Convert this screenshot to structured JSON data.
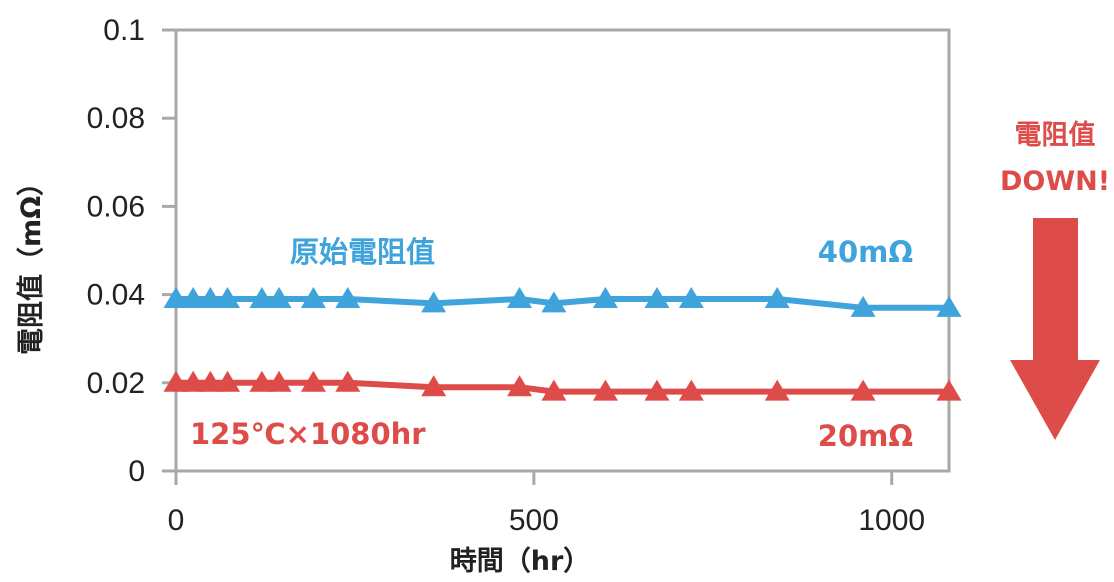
{
  "chart_data": {
    "type": "line",
    "xlabel": "時間（hr）",
    "ylabel": "電阻值（mΩ）",
    "xlim": [
      0,
      1080
    ],
    "ylim": [
      0,
      0.1
    ],
    "x_ticks": [
      "0",
      "500",
      "1000"
    ],
    "x_tick_values": [
      0,
      500,
      1000
    ],
    "y_ticks": [
      "0",
      "0.02",
      "0.04",
      "0.06",
      "0.08",
      "0.1"
    ],
    "y_tick_values": [
      0,
      0.02,
      0.04,
      0.06,
      0.08,
      0.1
    ],
    "grid": false,
    "marker": "triangle",
    "series": [
      {
        "color": "#3fa3dc",
        "x": [
          0,
          24,
          48,
          72,
          120,
          144,
          192,
          240,
          360,
          480,
          528,
          600,
          672,
          720,
          840,
          960,
          1080
        ],
        "values": [
          0.039,
          0.039,
          0.039,
          0.039,
          0.039,
          0.039,
          0.039,
          0.039,
          0.038,
          0.039,
          0.038,
          0.039,
          0.039,
          0.039,
          0.039,
          0.037,
          0.037
        ]
      },
      {
        "color": "#de4c4a",
        "x": [
          0,
          24,
          48,
          72,
          120,
          144,
          192,
          240,
          360,
          480,
          528,
          600,
          672,
          720,
          840,
          960,
          1080
        ],
        "values": [
          0.02,
          0.02,
          0.02,
          0.02,
          0.02,
          0.02,
          0.02,
          0.02,
          0.019,
          0.019,
          0.018,
          0.018,
          0.018,
          0.018,
          0.018,
          0.018,
          0.018
        ]
      }
    ],
    "annotations": {
      "blue_name": "原始電阻值",
      "blue_value": "40mΩ",
      "red_condition": "125℃×1080hr",
      "red_value": "20mΩ",
      "side_line1": "電阻值",
      "side_line2": "DOWN!"
    }
  },
  "colors": {
    "blue": "#3fa3dc",
    "red": "#de4c4a",
    "frame": "#a8a8a8",
    "text": "#222222"
  }
}
